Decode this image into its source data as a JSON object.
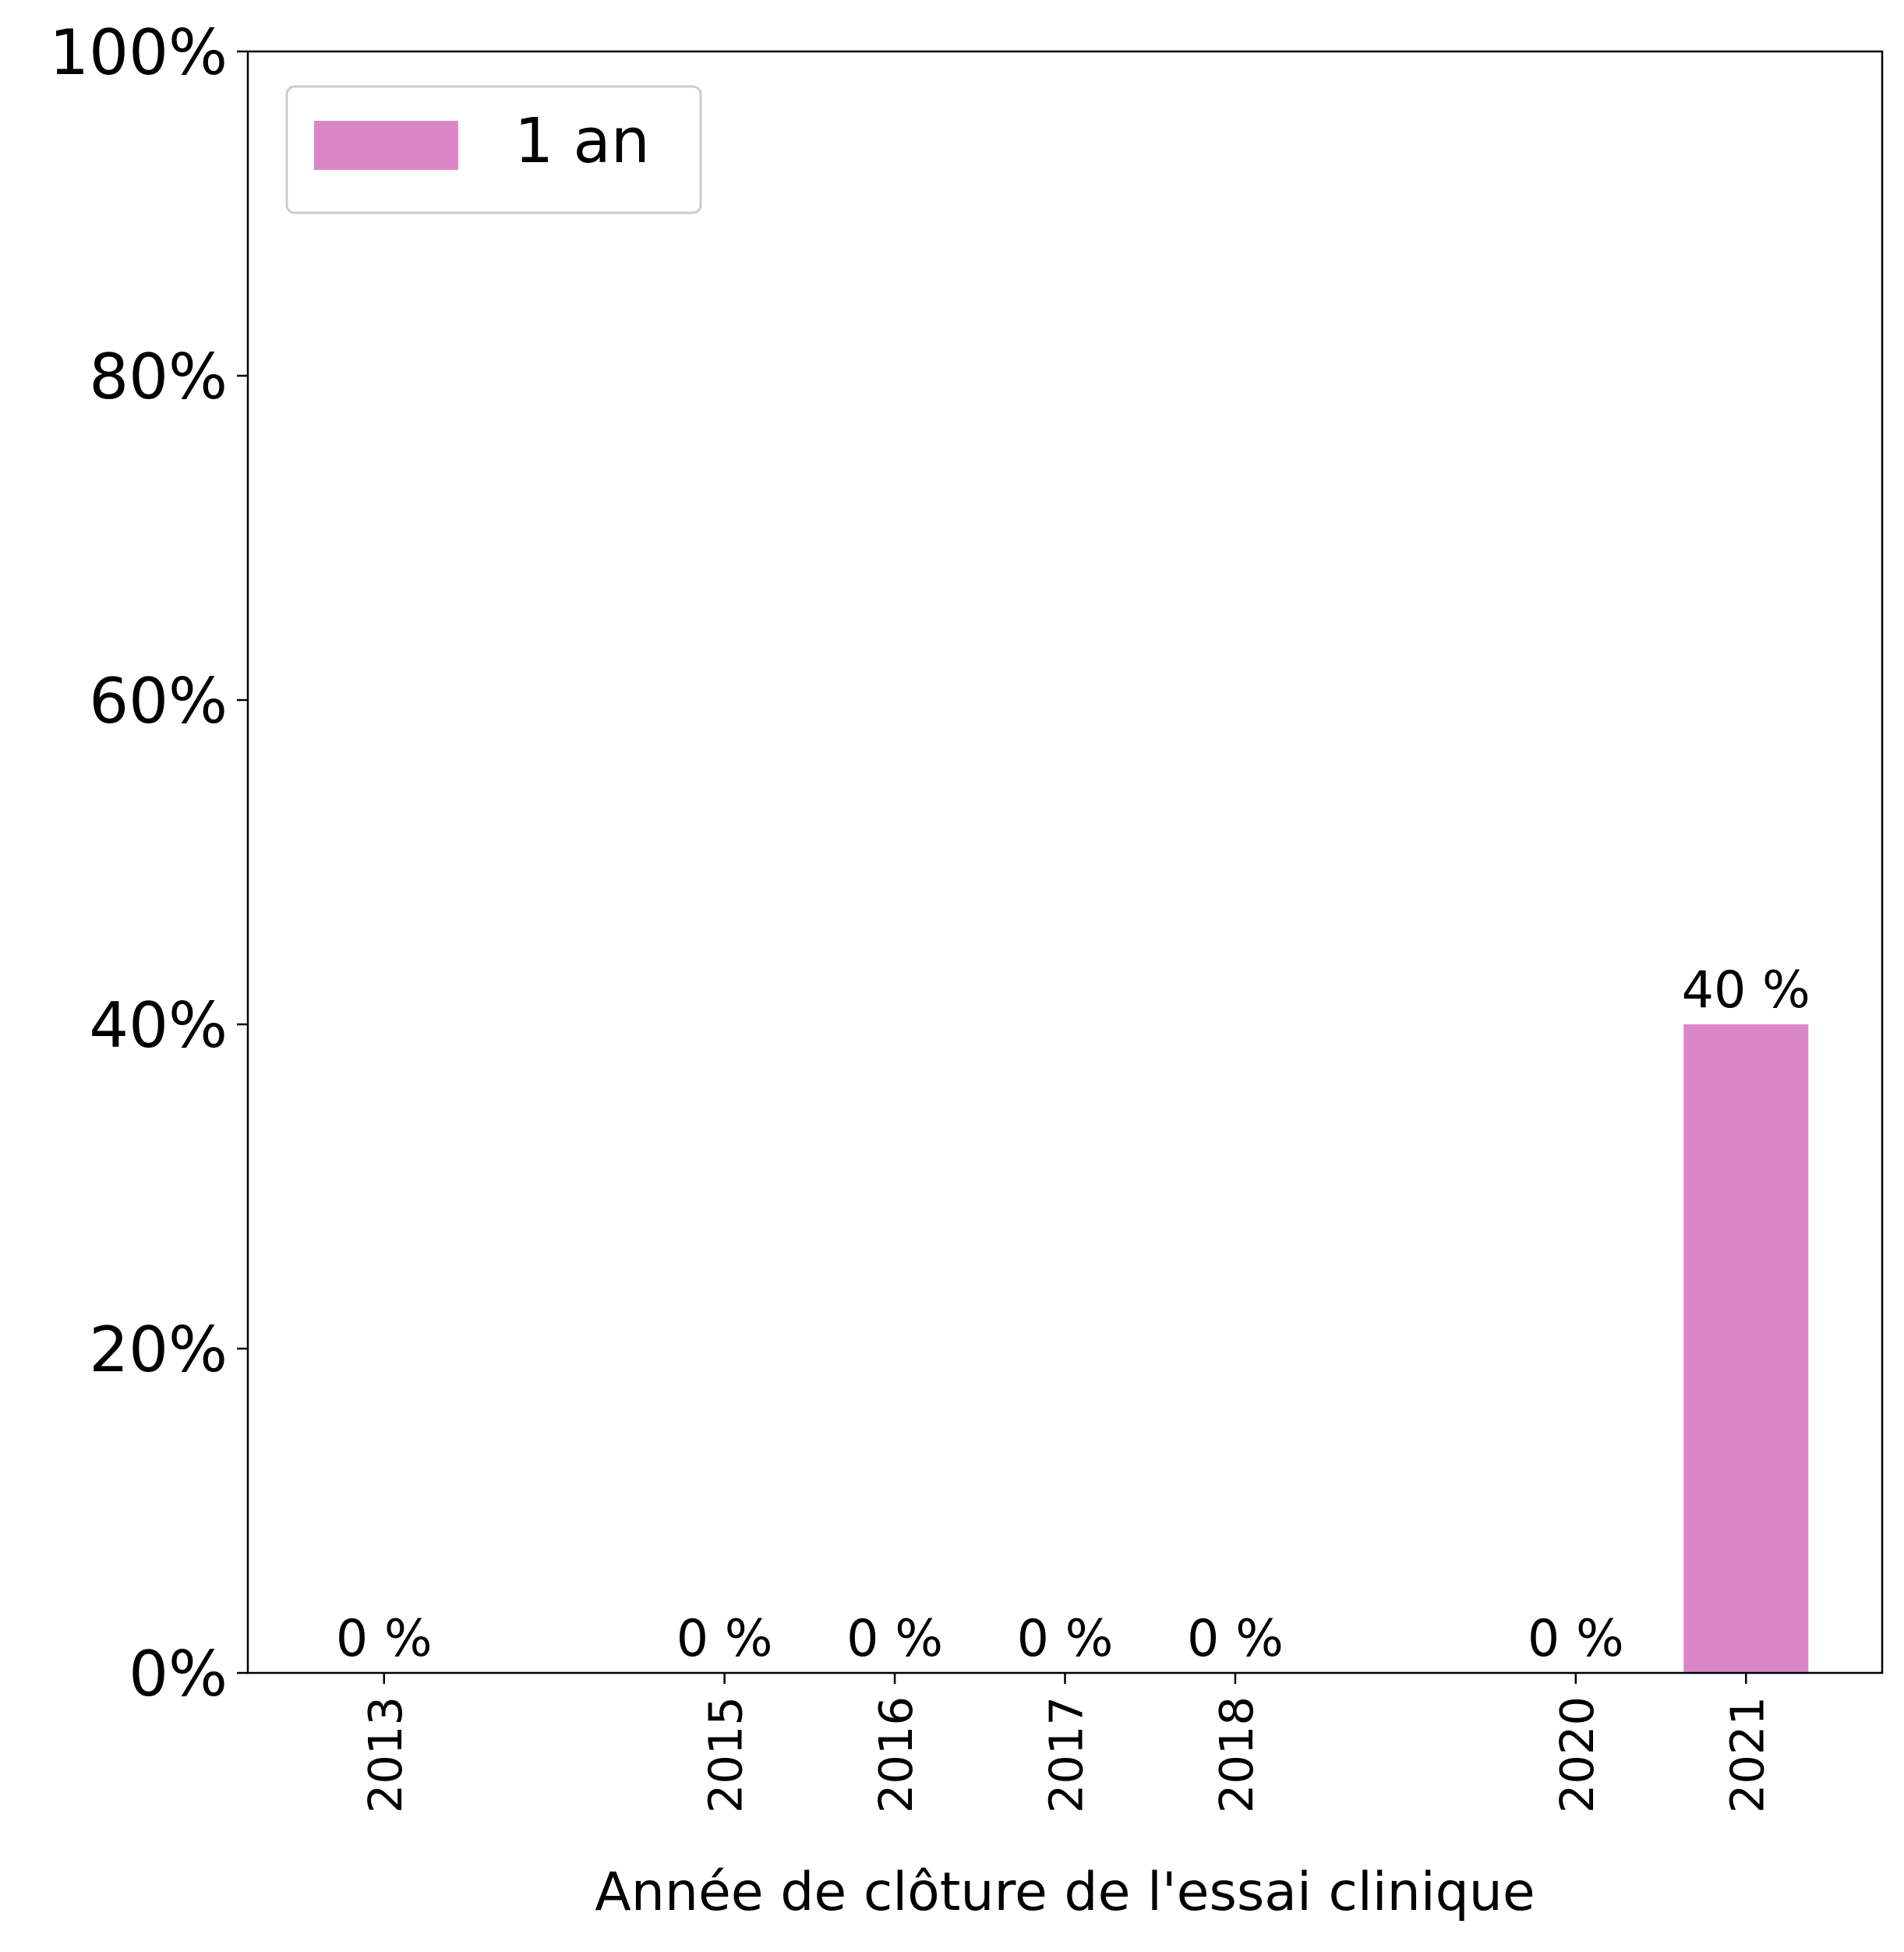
{
  "chart_data": {
    "type": "bar",
    "title": "",
    "xlabel": "Année de clôture de l'essai clinique",
    "ylabel": "",
    "x": [
      2013,
      2015,
      2016,
      2017,
      2018,
      2020,
      2021
    ],
    "x_tick_labels": [
      "2013",
      "2015",
      "2016",
      "2017",
      "2018",
      "2020",
      "2021"
    ],
    "xlim": [
      2012.2,
      2021.8
    ],
    "ylim": [
      0,
      100
    ],
    "y_ticks": [
      0,
      20,
      40,
      60,
      80,
      100
    ],
    "y_tick_labels": [
      "0%",
      "20%",
      "40%",
      "60%",
      "80%",
      "100%"
    ],
    "series": [
      {
        "name": "1 an",
        "color": "#db87c7",
        "values": [
          0,
          0,
          0,
          0,
          0,
          0,
          40
        ],
        "data_labels": [
          "0 %",
          "0 %",
          "0 %",
          "0 %",
          "0 %",
          "0 %",
          "40 %"
        ]
      }
    ],
    "legend": {
      "position": "top-left",
      "entries": [
        "1 an"
      ]
    },
    "grid": false
  }
}
